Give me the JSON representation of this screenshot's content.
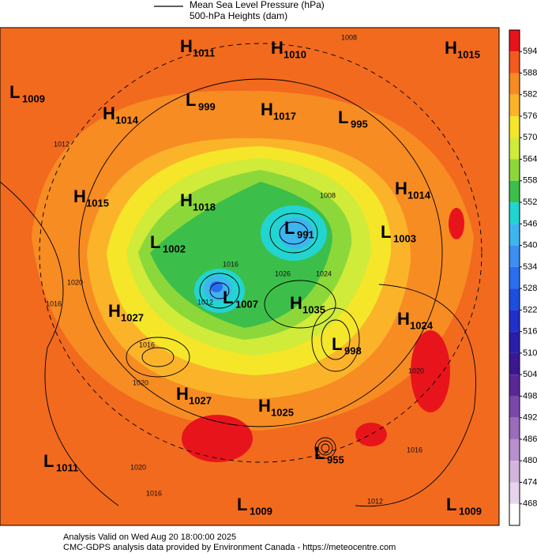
{
  "legend": {
    "pressure": "Mean Sea Level Pressure (hPa)",
    "heights": "500-hPa Heights (dam)"
  },
  "pressure_centers": [
    {
      "letter": "H",
      "value": 1011
    },
    {
      "letter": "H",
      "value": 1010
    },
    {
      "letter": "H",
      "value": 1015
    },
    {
      "letter": "L",
      "value": 1009
    },
    {
      "letter": "L",
      "value": 999
    },
    {
      "letter": "H",
      "value": 1014
    },
    {
      "letter": "H",
      "value": 1017
    },
    {
      "letter": "L",
      "value": 995
    },
    {
      "letter": "H",
      "value": 1014
    },
    {
      "letter": "H",
      "value": 1015
    },
    {
      "letter": "H",
      "value": 1018
    },
    {
      "letter": "L",
      "value": 991
    },
    {
      "letter": "L",
      "value": 1003
    },
    {
      "letter": "L",
      "value": 1002
    },
    {
      "letter": "L",
      "value": 1007
    },
    {
      "letter": "H",
      "value": 1035
    },
    {
      "letter": "H",
      "value": 1027
    },
    {
      "letter": "H",
      "value": 1024
    },
    {
      "letter": "L",
      "value": 998
    },
    {
      "letter": "H",
      "value": 1027
    },
    {
      "letter": "H",
      "value": 1025
    },
    {
      "letter": "L",
      "value": 955
    },
    {
      "letter": "L",
      "value": 1011
    },
    {
      "letter": "L",
      "value": 1009
    },
    {
      "letter": "L",
      "value": 1009
    }
  ],
  "contour_labels": [
    1008,
    1012,
    1008,
    1016,
    1026,
    1024,
    1020,
    1016,
    1012,
    1016,
    1020,
    1020,
    1020,
    1016,
    1016,
    1012
  ],
  "colorbar": {
    "ticks": [
      594,
      588,
      582,
      576,
      570,
      564,
      558,
      552,
      546,
      540,
      534,
      528,
      522,
      516,
      510,
      504,
      498,
      492,
      486,
      480,
      474,
      468
    ],
    "colors": [
      "#e8141c",
      "#f25a1e",
      "#f78c22",
      "#fbb42a",
      "#f5e629",
      "#d0eb3a",
      "#8cd83a",
      "#3cbf4a",
      "#22d5d0",
      "#3fb5ef",
      "#3c8ef0",
      "#2a6ef0",
      "#1e4ee0",
      "#2030c8",
      "#2a1ea8",
      "#3a1890",
      "#5a2896",
      "#7a48a8",
      "#9a6cbc",
      "#b890cc",
      "#d2b4dc",
      "#e6d4ec",
      "#ffffff"
    ]
  },
  "footer": {
    "valid": "Analysis Valid on Wed Aug 20 18:00:00 2025",
    "credit": "CMC-GDPS analysis data provided by Environment Canada - https://meteocentre.com"
  }
}
